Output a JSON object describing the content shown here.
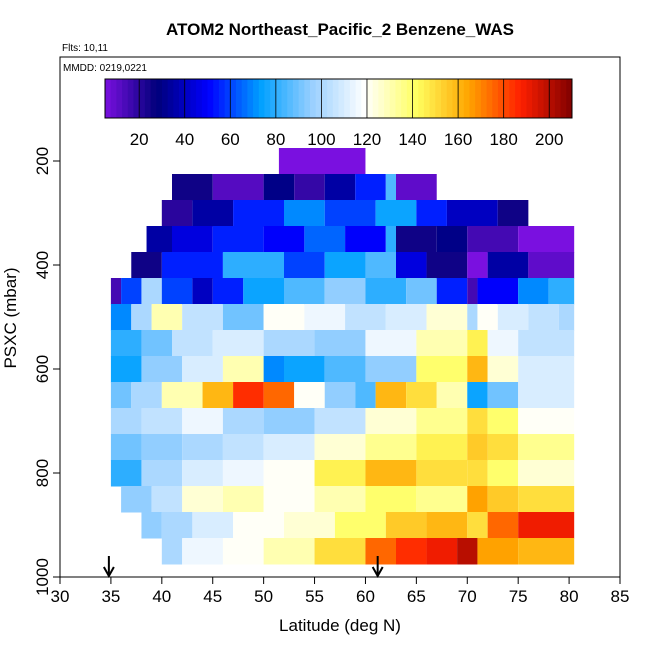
{
  "chart_data": {
    "type": "heatmap",
    "title": "ATOM2 Northeast_Pacific_2 Benzene_WAS",
    "flights_note": "Flts: 10,11",
    "dates_note": "MMDD: 0219,0221",
    "xlabel": "Latitude (deg N)",
    "ylabel": "PSXC (mbar)",
    "xlim": [
      30,
      85
    ],
    "ylim": [
      1000,
      0
    ],
    "x_ticks": [
      30,
      35,
      40,
      45,
      50,
      55,
      60,
      65,
      70,
      75,
      80,
      85
    ],
    "y_ticks": [
      200,
      400,
      600,
      800,
      1000
    ],
    "colorbar": {
      "range": [
        5,
        210
      ],
      "ticks": [
        20,
        40,
        60,
        80,
        100,
        120,
        140,
        160,
        180,
        200
      ],
      "colors": [
        "#7a10e0",
        "#00007a",
        "#0000ff",
        "#00a0ff",
        "#9ad0ff",
        "#ffffff",
        "#ffff60",
        "#ffa500",
        "#ff2000",
        "#800000"
      ]
    },
    "flight_arrows_latitude": [
      34.8,
      61.2
    ],
    "rows": [
      {
        "p": 200,
        "segs": [
          [
            51.5,
            60,
            5
          ]
        ]
      },
      {
        "p": 250,
        "segs": [
          [
            41,
            45,
            25
          ],
          [
            45,
            50,
            12
          ],
          [
            50,
            53,
            30
          ],
          [
            53,
            56,
            18
          ],
          [
            56,
            59,
            35
          ],
          [
            59,
            62,
            55
          ],
          [
            62,
            63,
            85
          ],
          [
            63,
            67,
            10
          ]
        ]
      },
      {
        "p": 300,
        "segs": [
          [
            40,
            43,
            20
          ],
          [
            43,
            47,
            35
          ],
          [
            47,
            52,
            55
          ],
          [
            52,
            56,
            70
          ],
          [
            56,
            61,
            60
          ],
          [
            61,
            65,
            75
          ],
          [
            65,
            68,
            55
          ],
          [
            68,
            73,
            40
          ],
          [
            73,
            76,
            25
          ]
        ]
      },
      {
        "p": 350,
        "segs": [
          [
            38.5,
            41,
            35
          ],
          [
            41,
            45,
            45
          ],
          [
            45,
            50,
            55
          ],
          [
            50,
            54,
            50
          ],
          [
            54,
            58,
            65
          ],
          [
            58,
            62,
            50
          ],
          [
            62,
            63,
            80
          ],
          [
            63,
            67,
            25
          ],
          [
            67,
            70,
            30
          ],
          [
            70,
            75,
            15
          ],
          [
            75,
            80.5,
            5
          ]
        ]
      },
      {
        "p": 400,
        "segs": [
          [
            37,
            40,
            25
          ],
          [
            40,
            46,
            55
          ],
          [
            46,
            52,
            80
          ],
          [
            52,
            56,
            60
          ],
          [
            56,
            60,
            75
          ],
          [
            60,
            63,
            85
          ],
          [
            63,
            66,
            45
          ],
          [
            66,
            70,
            25
          ],
          [
            70,
            72,
            5
          ],
          [
            72,
            76,
            35
          ],
          [
            76,
            80.5,
            10
          ]
        ]
      },
      {
        "p": 450,
        "segs": [
          [
            35,
            36,
            15
          ],
          [
            36,
            38,
            60
          ],
          [
            38,
            40,
            100
          ],
          [
            40,
            43,
            60
          ],
          [
            43,
            45,
            40
          ],
          [
            45,
            48,
            55
          ],
          [
            48,
            52,
            75
          ],
          [
            52,
            56,
            85
          ],
          [
            56,
            60,
            95
          ],
          [
            60,
            64,
            80
          ],
          [
            64,
            67,
            90
          ],
          [
            67,
            70,
            55
          ],
          [
            70,
            71,
            15
          ],
          [
            71,
            75,
            50
          ],
          [
            75,
            78,
            70
          ],
          [
            78,
            80.5,
            80
          ]
        ]
      },
      {
        "p": 500,
        "segs": [
          [
            35,
            37,
            70
          ],
          [
            37,
            39,
            100
          ],
          [
            39,
            42,
            130
          ],
          [
            42,
            46,
            105
          ],
          [
            46,
            50,
            90
          ],
          [
            50,
            54,
            120
          ],
          [
            54,
            58,
            115
          ],
          [
            58,
            62,
            105
          ],
          [
            62,
            66,
            110
          ],
          [
            66,
            70,
            125
          ],
          [
            70,
            71,
            100
          ],
          [
            71,
            73,
            120
          ],
          [
            73,
            76,
            110
          ],
          [
            76,
            79,
            105
          ],
          [
            79,
            80.5,
            100
          ]
        ]
      },
      {
        "p": 550,
        "segs": [
          [
            35,
            38,
            80
          ],
          [
            38,
            41,
            90
          ],
          [
            41,
            45,
            105
          ],
          [
            45,
            50,
            110
          ],
          [
            50,
            55,
            100
          ],
          [
            55,
            60,
            95
          ],
          [
            60,
            65,
            115
          ],
          [
            65,
            70,
            130
          ],
          [
            70,
            72,
            145
          ],
          [
            72,
            75,
            115
          ],
          [
            75,
            80.5,
            105
          ]
        ]
      },
      {
        "p": 600,
        "segs": [
          [
            35,
            38,
            75
          ],
          [
            38,
            42,
            95
          ],
          [
            42,
            46,
            110
          ],
          [
            46,
            50,
            130
          ],
          [
            50,
            52,
            70
          ],
          [
            52,
            56,
            75
          ],
          [
            56,
            60,
            85
          ],
          [
            60,
            65,
            95
          ],
          [
            65,
            70,
            140
          ],
          [
            70,
            72,
            160
          ],
          [
            72,
            75,
            125
          ],
          [
            75,
            80.5,
            110
          ]
        ]
      },
      {
        "p": 650,
        "segs": [
          [
            35,
            37,
            90
          ],
          [
            37,
            40,
            100
          ],
          [
            40,
            44,
            130
          ],
          [
            44,
            47,
            160
          ],
          [
            47,
            50,
            185
          ],
          [
            50,
            53,
            175
          ],
          [
            53,
            56,
            120
          ],
          [
            56,
            59,
            95
          ],
          [
            59,
            61,
            85
          ],
          [
            61,
            64,
            160
          ],
          [
            64,
            67,
            150
          ],
          [
            67,
            70,
            130
          ],
          [
            70,
            72,
            75
          ],
          [
            72,
            75,
            90
          ],
          [
            75,
            80.5,
            110
          ]
        ]
      },
      {
        "p": 700,
        "segs": [
          [
            35,
            38,
            100
          ],
          [
            38,
            42,
            105
          ],
          [
            42,
            46,
            115
          ],
          [
            46,
            50,
            100
          ],
          [
            50,
            55,
            95
          ],
          [
            55,
            60,
            105
          ],
          [
            60,
            65,
            125
          ],
          [
            65,
            70,
            135
          ],
          [
            70,
            72,
            150
          ],
          [
            72,
            75,
            140
          ],
          [
            75,
            80.5,
            120
          ]
        ]
      },
      {
        "p": 750,
        "segs": [
          [
            35,
            38,
            90
          ],
          [
            38,
            42,
            95
          ],
          [
            42,
            46,
            100
          ],
          [
            46,
            50,
            105
          ],
          [
            50,
            55,
            110
          ],
          [
            55,
            60,
            125
          ],
          [
            60,
            65,
            135
          ],
          [
            65,
            70,
            145
          ],
          [
            70,
            72,
            155
          ],
          [
            72,
            75,
            150
          ],
          [
            75,
            80.5,
            135
          ]
        ]
      },
      {
        "p": 800,
        "segs": [
          [
            35,
            38,
            80
          ],
          [
            38,
            42,
            100
          ],
          [
            42,
            46,
            110
          ],
          [
            46,
            50,
            115
          ],
          [
            50,
            55,
            120
          ],
          [
            55,
            60,
            145
          ],
          [
            60,
            65,
            160
          ],
          [
            65,
            70,
            150
          ],
          [
            70,
            72,
            150
          ],
          [
            72,
            75,
            140
          ],
          [
            75,
            80.5,
            125
          ]
        ]
      },
      {
        "p": 850,
        "segs": [
          [
            36,
            39,
            95
          ],
          [
            39,
            42,
            105
          ],
          [
            42,
            46,
            125
          ],
          [
            46,
            50,
            130
          ],
          [
            50,
            55,
            120
          ],
          [
            55,
            60,
            130
          ],
          [
            60,
            65,
            140
          ],
          [
            65,
            70,
            135
          ],
          [
            70,
            72,
            165
          ],
          [
            72,
            75,
            155
          ],
          [
            75,
            80.5,
            150
          ]
        ]
      },
      {
        "p": 900,
        "segs": [
          [
            38,
            40,
            95
          ],
          [
            40,
            43,
            100
          ],
          [
            43,
            47,
            110
          ],
          [
            47,
            52,
            120
          ],
          [
            52,
            57,
            125
          ],
          [
            57,
            62,
            140
          ],
          [
            62,
            66,
            155
          ],
          [
            66,
            70,
            160
          ],
          [
            70,
            72,
            150
          ],
          [
            72,
            75,
            175
          ],
          [
            75,
            80.5,
            190
          ]
        ]
      },
      {
        "p": 950,
        "segs": [
          [
            40,
            42,
            100
          ],
          [
            42,
            46,
            115
          ],
          [
            46,
            50,
            120
          ],
          [
            50,
            55,
            130
          ],
          [
            55,
            60,
            150
          ],
          [
            60,
            63,
            175
          ],
          [
            63,
            66,
            185
          ],
          [
            66,
            69,
            190
          ],
          [
            69,
            71,
            200
          ],
          [
            71,
            75,
            165
          ],
          [
            75,
            80.5,
            160
          ]
        ]
      }
    ]
  }
}
